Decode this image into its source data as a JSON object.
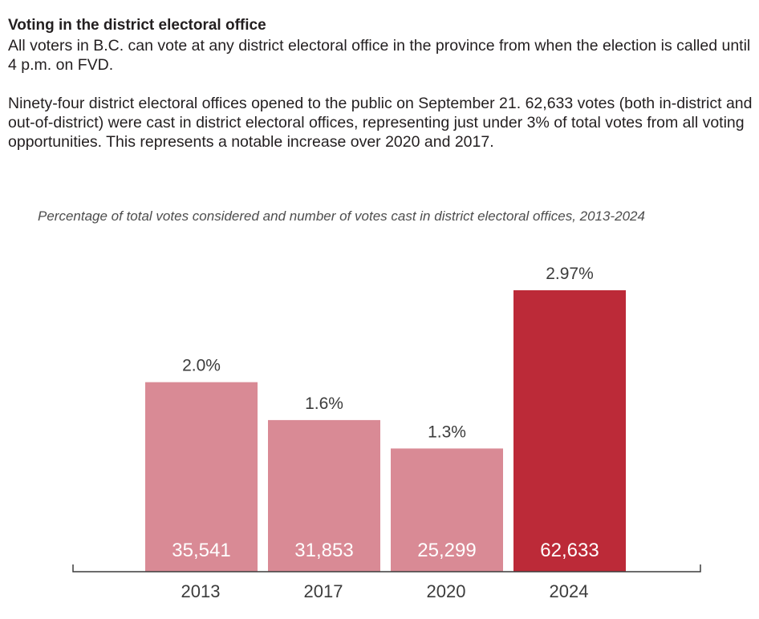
{
  "text": {
    "heading": "Voting in the district electoral office",
    "paragraph_1": "All voters in B.C. can vote at any district electoral office in the province from when the election is called until 4 p.m. on FVD.",
    "paragraph_2": "Ninety-four district electoral offices opened to the public on September 21. 62,633 votes (both in-district and out-of-district) were cast in district electoral offices, representing just under 3% of total votes from all voting opportunities. This represents a notable increase over 2020 and 2017."
  },
  "chart_data": {
    "type": "bar",
    "title": "Percentage of total votes considered and number of votes cast in district electoral offices, 2013-2024",
    "xlabel": "",
    "ylabel": "",
    "grid": false,
    "categories": [
      "2013",
      "2017",
      "2020",
      "2024"
    ],
    "series": [
      {
        "name": "Percentage of total votes considered",
        "values": [
          2.0,
          1.6,
          1.3,
          2.97
        ],
        "labels": [
          "2.0%",
          "1.6%",
          "1.3%",
          "2.97%"
        ]
      },
      {
        "name": "Votes cast in district electoral offices",
        "values": [
          35541,
          31853,
          25299,
          62633
        ],
        "labels": [
          "35,541",
          "31,853",
          "25,299",
          "62,633"
        ]
      }
    ],
    "ylim": [
      0,
      3.0
    ],
    "colors": [
      "#d98a95",
      "#d98a95",
      "#d98a95",
      "#bc2a38"
    ],
    "axis_color": "#3c3c3c"
  }
}
